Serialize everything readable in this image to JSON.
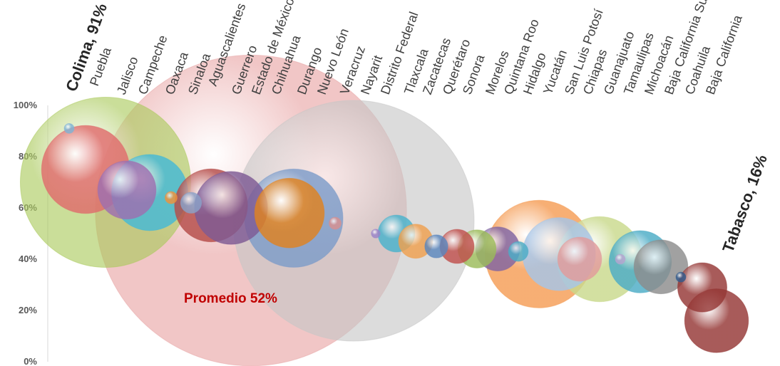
{
  "chart_data": {
    "type": "scatter",
    "title": "",
    "xlabel": "",
    "ylabel": "",
    "ylim": [
      0,
      100
    ],
    "y_ticks": [
      "0%",
      "20%",
      "40%",
      "60%",
      "80%",
      "100%"
    ],
    "grid": false,
    "legend": "none",
    "average_label": "Promedio 52%",
    "categories": [
      "Colima, 91%",
      "Puebla",
      "Jalisco",
      "Campeche",
      "Oaxaca",
      "Sinaloa",
      "Aguascalientes",
      "Guerrero",
      "Estado de México",
      "Chihuahua",
      "Durango",
      "Nuevo León",
      "Veracruz",
      "Nayarit",
      "Distrito Federal",
      "Tlaxcala",
      "Zacatecas",
      "Querétaro",
      "Sonora",
      "Morelos",
      "Quintana Roo",
      "Hidalgo",
      "Yucatán",
      "San Luis Potosí",
      "Chiapas",
      "Guanajuato",
      "Tamaulipas",
      "Michoacán",
      "Baja California Sur",
      "Coahuila",
      "Baja California",
      "Tabasco, 16%"
    ],
    "values": [
      91,
      75,
      70,
      67,
      66,
      64,
      62,
      61,
      60,
      59,
      58,
      56,
      55,
      54,
      50,
      50,
      47,
      45,
      45,
      44,
      44,
      43,
      42,
      42,
      40,
      40,
      40,
      39,
      37,
      33,
      29,
      16
    ],
    "bubble_size": [
      1,
      80,
      300,
      35,
      60,
      1.5,
      4.5,
      55,
      55,
      1000,
      50,
      100,
      600,
      1.5,
      0.8,
      14,
      12,
      5.5,
      12,
      15,
      20,
      4,
      120,
      55,
      20,
      75,
      1,
      40,
      30,
      1,
      25,
      42
    ],
    "colors": [
      "#7fb3d5",
      "#e06c6c",
      "#a9c95a",
      "#9e6fb0",
      "#45b9d6",
      "#f0923a",
      "#8aa1c8",
      "#b54b48",
      "#7e5a94",
      "#e8a3a3",
      "#e0821f",
      "#7d9cc9",
      "#c6c6c6",
      "#d89090",
      "#9b84c9",
      "#49b2cc",
      "#f0a04e",
      "#5b86bd",
      "#c0504d",
      "#9bbb59",
      "#8064a2",
      "#4bacc6",
      "#f59d56",
      "#a6c5e8",
      "#e29b9b",
      "#c9d98c",
      "#b5a4cf",
      "#4bacc6",
      "#8c8c8c",
      "#325a8c",
      "#953735",
      "#953735"
    ]
  }
}
